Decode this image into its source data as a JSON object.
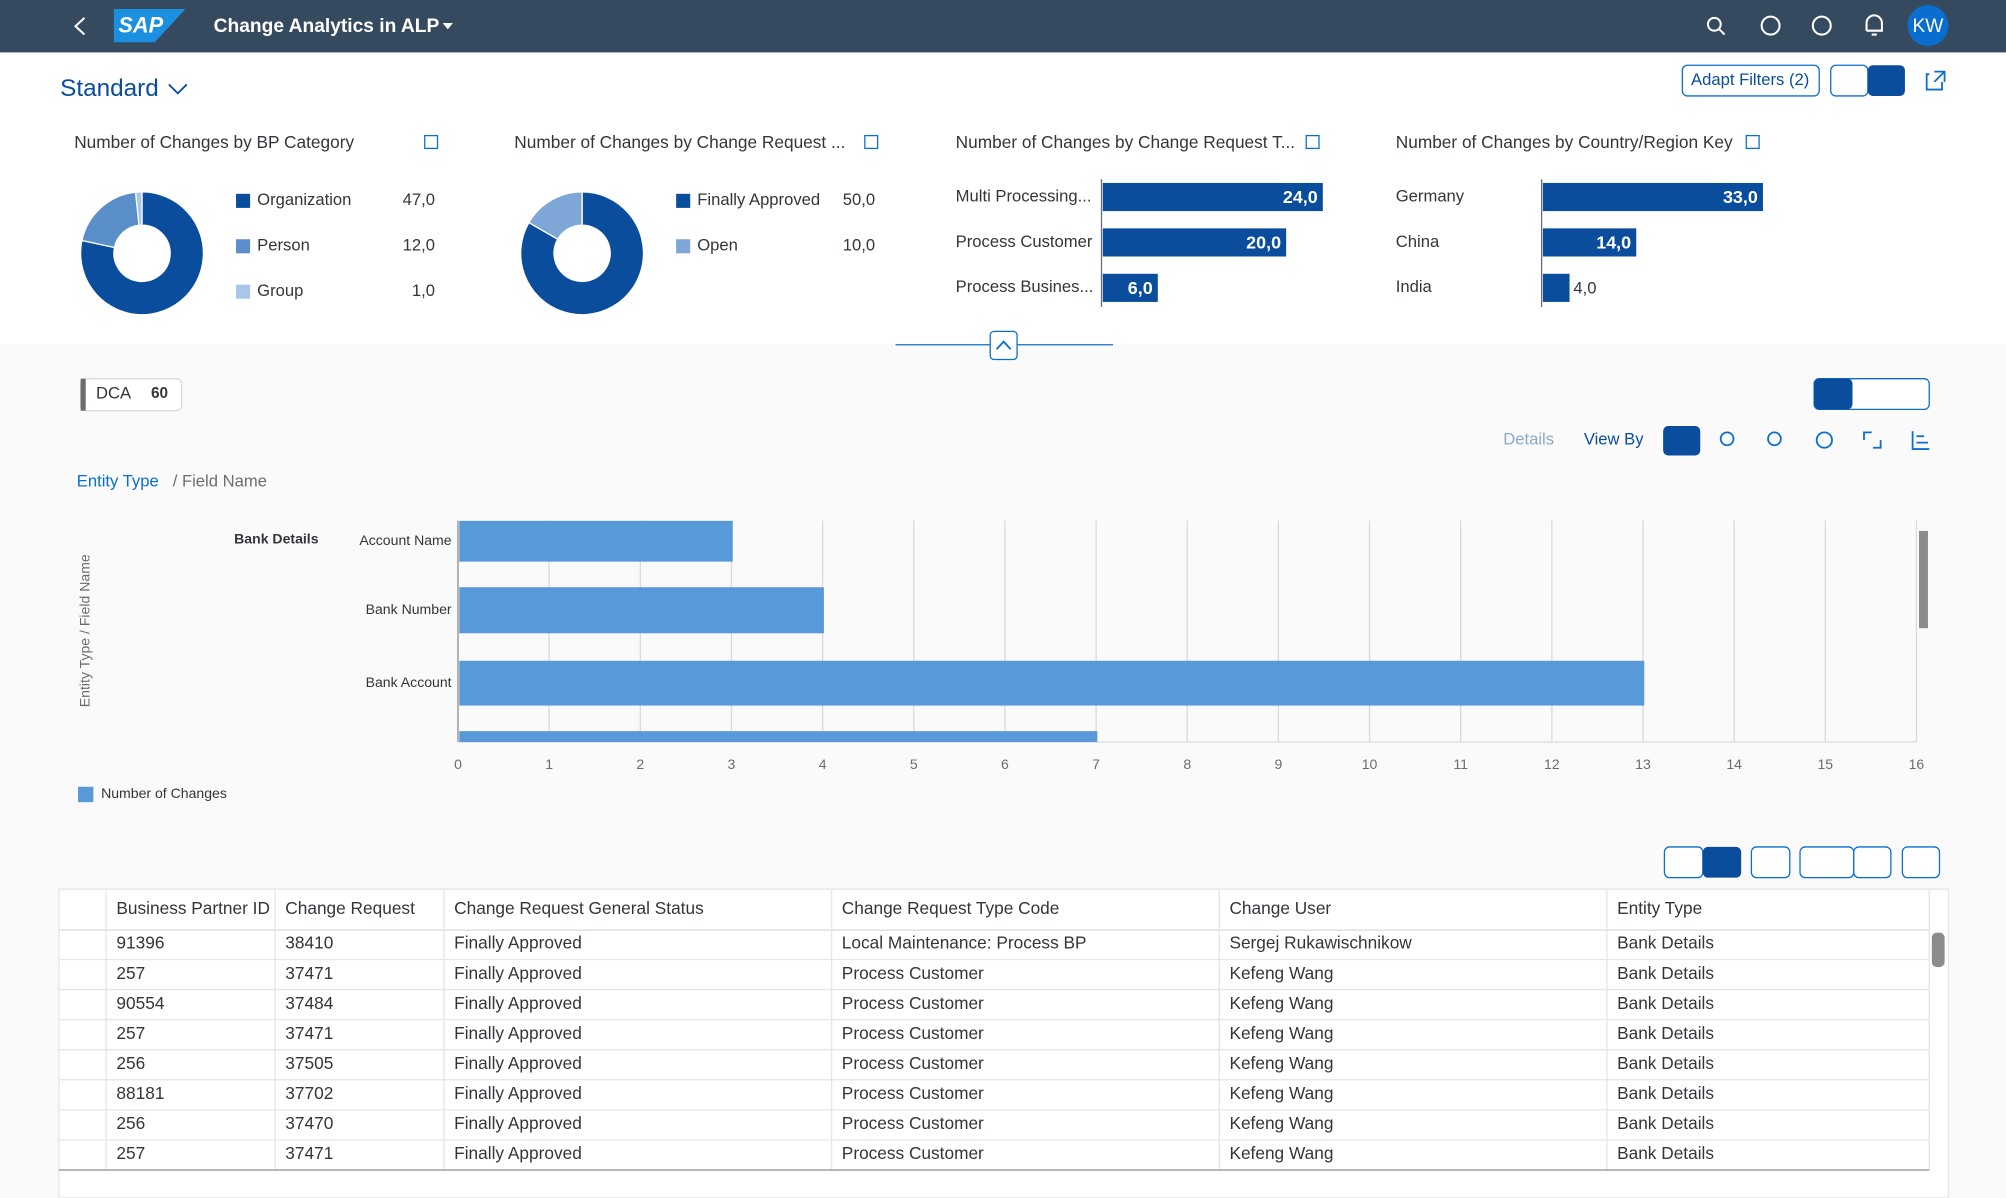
{
  "header": {
    "logo": "SAP",
    "title": "Change Analytics in ALP",
    "avatar": "KW"
  },
  "variant": "Standard",
  "toolbar": {
    "adapt_filters": "Adapt Filters (2)"
  },
  "cards": [
    {
      "type": "donut",
      "title": "Number of Changes by BP Category",
      "categories": [
        "Organization",
        "Person",
        "Group"
      ],
      "values": [
        47,
        12,
        1
      ],
      "value_labels": [
        "47,0",
        "12,0",
        "1,0"
      ],
      "colors": [
        "#0a4d9c",
        "#5b8fc9",
        "#a9c6e8"
      ]
    },
    {
      "type": "donut",
      "title": "Number of Changes by Change Request ...",
      "categories": [
        "Finally Approved",
        "Open"
      ],
      "values": [
        50,
        10
      ],
      "value_labels": [
        "50,0",
        "10,0"
      ],
      "colors": [
        "#0a4d9c",
        "#7ea6d6"
      ]
    },
    {
      "type": "bar",
      "title": "Number of Changes by Change Request T...",
      "categories": [
        "Multi Processing...",
        "Process Customer",
        "Process Busines..."
      ],
      "values": [
        24,
        20,
        6
      ],
      "value_labels": [
        "24,0",
        "20,0",
        "6,0"
      ],
      "color": "#0a4d9c"
    },
    {
      "type": "bar",
      "title": "Number of Changes by Country/Region Key",
      "categories": [
        "Germany",
        "China",
        "India"
      ],
      "values": [
        33,
        14,
        4
      ],
      "value_labels": [
        "33,0",
        "14,0",
        "4,0"
      ],
      "color": "#0a4d9c"
    }
  ],
  "kpi": {
    "label": "DCA",
    "value": 60
  },
  "chart_toolbar": {
    "details": "Details",
    "view_by": "View By"
  },
  "breadcrumb": {
    "link": "Entity Type",
    "rest": "/ Field Name"
  },
  "chart_data": {
    "type": "bar",
    "y_axis_label": "Entity Type / Field Name",
    "group": "Bank Details",
    "categories": [
      "Account Name",
      "Bank Number",
      "Bank Account",
      null
    ],
    "values": [
      3,
      4,
      13,
      7
    ],
    "xlim": [
      0,
      16
    ],
    "xticks": [
      0,
      1,
      2,
      3,
      4,
      5,
      6,
      7,
      8,
      9,
      10,
      11,
      12,
      13,
      14,
      15,
      16
    ],
    "grid": true,
    "legend": "Number of Changes",
    "color": "#5899da"
  },
  "table": {
    "columns": [
      "Business Partner ID",
      "Change Request",
      "Change Request General Status",
      "Change Request Type Code",
      "Change User",
      "Entity Type"
    ],
    "rows": [
      [
        "91396",
        "38410",
        "Finally Approved",
        "Local Maintenance: Process BP",
        "Sergej Rukawischnikow",
        "Bank Details"
      ],
      [
        "257",
        "37471",
        "Finally Approved",
        "Process Customer",
        "Kefeng Wang",
        "Bank Details"
      ],
      [
        "90554",
        "37484",
        "Finally Approved",
        "Process Customer",
        "Kefeng Wang",
        "Bank Details"
      ],
      [
        "257",
        "37471",
        "Finally Approved",
        "Process Customer",
        "Kefeng Wang",
        "Bank Details"
      ],
      [
        "256",
        "37505",
        "Finally Approved",
        "Process Customer",
        "Kefeng Wang",
        "Bank Details"
      ],
      [
        "88181",
        "37702",
        "Finally Approved",
        "Process Customer",
        "Kefeng Wang",
        "Bank Details"
      ],
      [
        "256",
        "37470",
        "Finally Approved",
        "Process Customer",
        "Kefeng Wang",
        "Bank Details"
      ],
      [
        "257",
        "37471",
        "Finally Approved",
        "Process Customer",
        "Kefeng Wang",
        "Bank Details"
      ]
    ]
  }
}
